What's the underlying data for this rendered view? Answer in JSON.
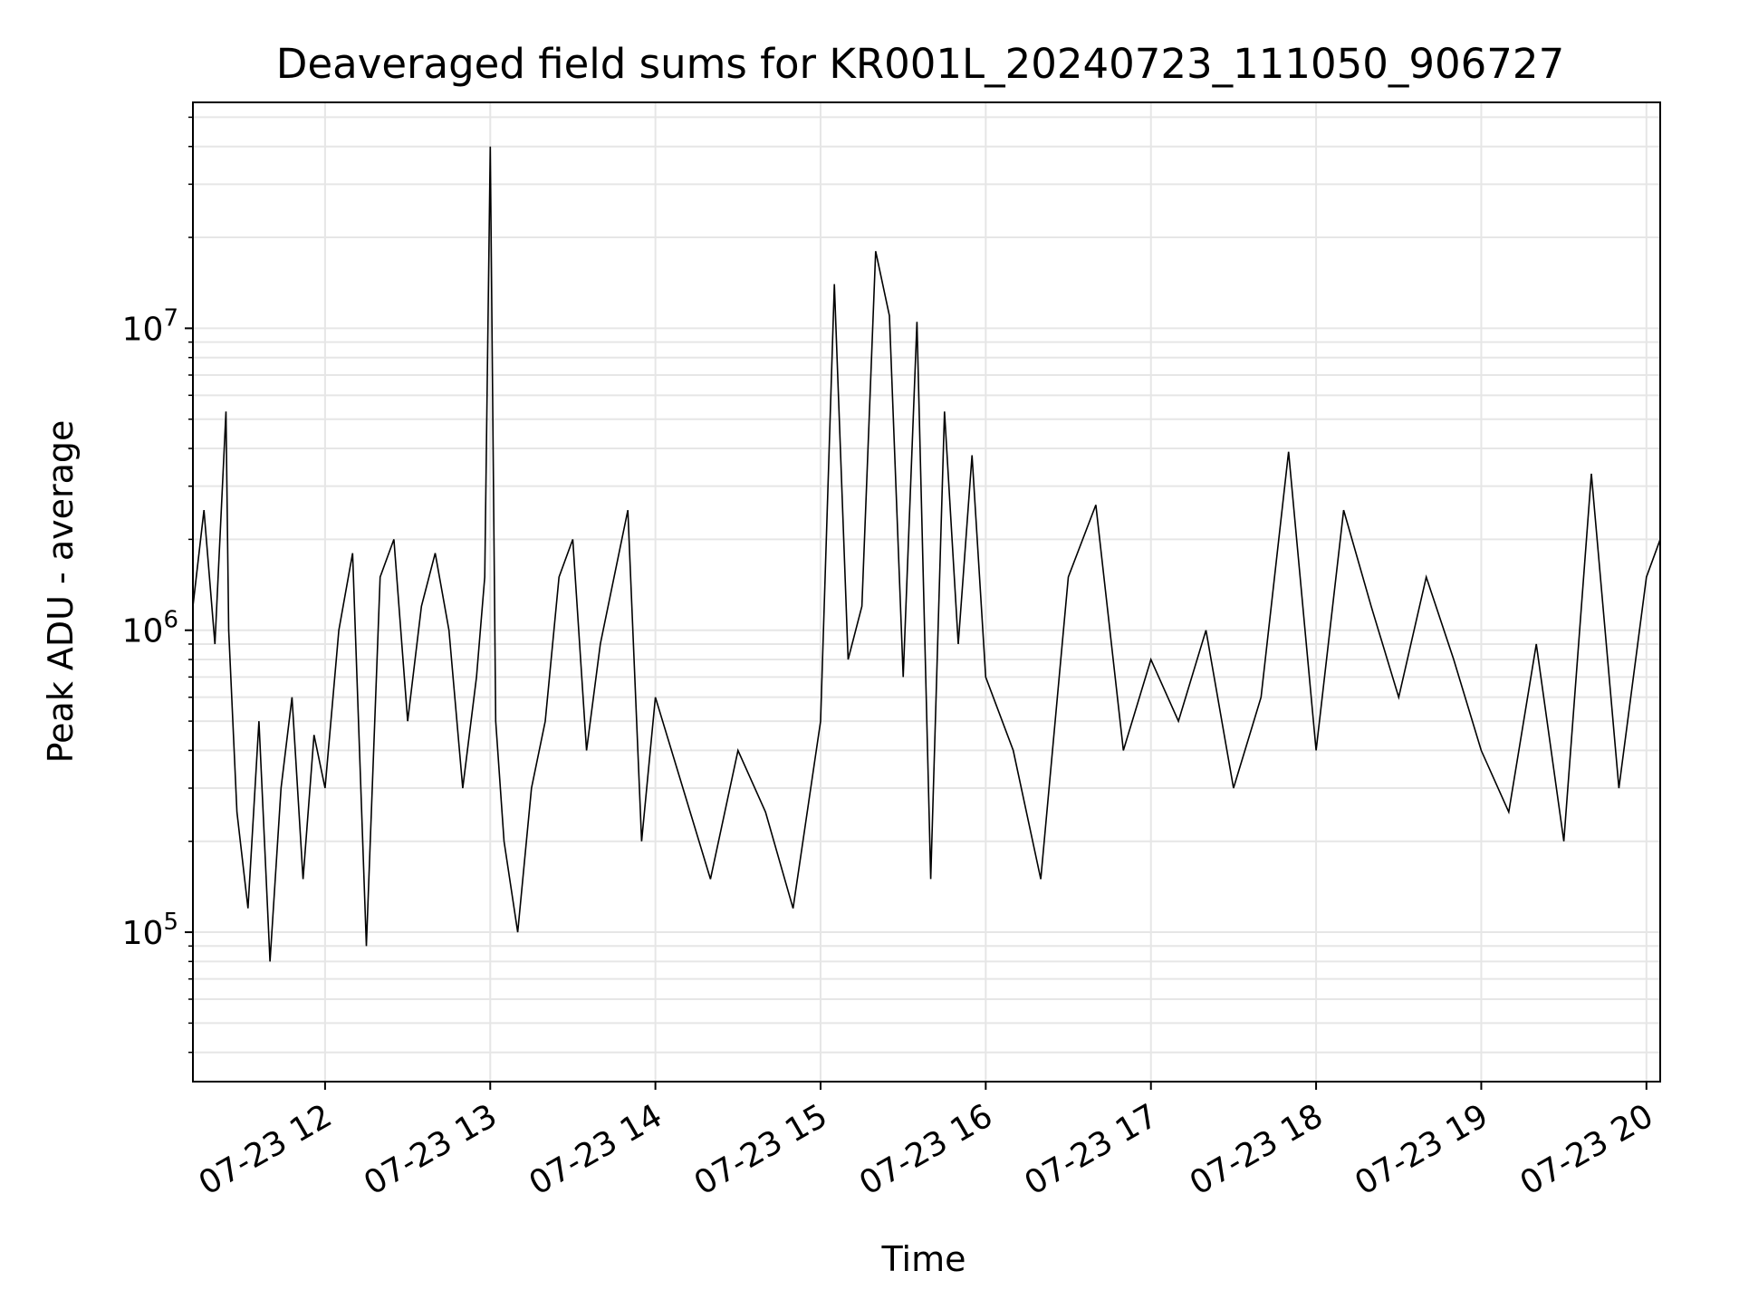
{
  "chart_data": {
    "type": "line",
    "title": "Deaveraged field sums for KR001L_20240723_111050_906727",
    "xlabel": "Time",
    "ylabel": "Peak ADU - average",
    "xlim": [
      "2024-07-23 11:12",
      "2024-07-23 20:05"
    ],
    "ylim": [
      32000,
      56000000
    ],
    "yscale": "log",
    "grid": true,
    "line_color": "#000000",
    "x_ticks": [
      {
        "value": "2024-07-23 12:00",
        "label": "07-23 12"
      },
      {
        "value": "2024-07-23 13:00",
        "label": "07-23 13"
      },
      {
        "value": "2024-07-23 14:00",
        "label": "07-23 14"
      },
      {
        "value": "2024-07-23 15:00",
        "label": "07-23 15"
      },
      {
        "value": "2024-07-23 16:00",
        "label": "07-23 16"
      },
      {
        "value": "2024-07-23 17:00",
        "label": "07-23 17"
      },
      {
        "value": "2024-07-23 18:00",
        "label": "07-23 18"
      },
      {
        "value": "2024-07-23 19:00",
        "label": "07-23 19"
      },
      {
        "value": "2024-07-23 20:00",
        "label": "07-23 20"
      }
    ],
    "y_ticks": [
      {
        "value": 100000,
        "base": "10",
        "exp": "5"
      },
      {
        "value": 1000000,
        "base": "10",
        "exp": "6"
      },
      {
        "value": 10000000,
        "base": "10",
        "exp": "7"
      }
    ],
    "series": [
      {
        "x": [
          "2024-07-23 11:12",
          "2024-07-23 11:16",
          "2024-07-23 11:20",
          "2024-07-23 11:24",
          "2024-07-23 11:25",
          "2024-07-23 11:28",
          "2024-07-23 11:32",
          "2024-07-23 11:36",
          "2024-07-23 11:40",
          "2024-07-23 11:44",
          "2024-07-23 11:48",
          "2024-07-23 11:52",
          "2024-07-23 11:56",
          "2024-07-23 12:00",
          "2024-07-23 12:05",
          "2024-07-23 12:10",
          "2024-07-23 12:15",
          "2024-07-23 12:20",
          "2024-07-23 12:25",
          "2024-07-23 12:30",
          "2024-07-23 12:35",
          "2024-07-23 12:40",
          "2024-07-23 12:45",
          "2024-07-23 12:50",
          "2024-07-23 12:55",
          "2024-07-23 12:58",
          "2024-07-23 13:00",
          "2024-07-23 13:02",
          "2024-07-23 13:05",
          "2024-07-23 13:10",
          "2024-07-23 13:15",
          "2024-07-23 13:20",
          "2024-07-23 13:25",
          "2024-07-23 13:30",
          "2024-07-23 13:35",
          "2024-07-23 13:40",
          "2024-07-23 13:45",
          "2024-07-23 13:50",
          "2024-07-23 13:55",
          "2024-07-23 14:00",
          "2024-07-23 14:10",
          "2024-07-23 14:20",
          "2024-07-23 14:30",
          "2024-07-23 14:40",
          "2024-07-23 14:50",
          "2024-07-23 15:00",
          "2024-07-23 15:05",
          "2024-07-23 15:10",
          "2024-07-23 15:15",
          "2024-07-23 15:20",
          "2024-07-23 15:25",
          "2024-07-23 15:30",
          "2024-07-23 15:35",
          "2024-07-23 15:40",
          "2024-07-23 15:45",
          "2024-07-23 15:50",
          "2024-07-23 15:55",
          "2024-07-23 16:00",
          "2024-07-23 16:10",
          "2024-07-23 16:20",
          "2024-07-23 16:30",
          "2024-07-23 16:40",
          "2024-07-23 16:50",
          "2024-07-23 17:00",
          "2024-07-23 17:10",
          "2024-07-23 17:20",
          "2024-07-23 17:30",
          "2024-07-23 17:40",
          "2024-07-23 17:50",
          "2024-07-23 18:00",
          "2024-07-23 18:10",
          "2024-07-23 18:20",
          "2024-07-23 18:30",
          "2024-07-23 18:40",
          "2024-07-23 18:50",
          "2024-07-23 19:00",
          "2024-07-23 19:10",
          "2024-07-23 19:20",
          "2024-07-23 19:30",
          "2024-07-23 19:40",
          "2024-07-23 19:50",
          "2024-07-23 20:00",
          "2024-07-23 20:05"
        ],
        "y": [
          1200000,
          2500000,
          900000,
          5300000,
          1000000,
          250000,
          120000,
          500000,
          80000,
          300000,
          600000,
          150000,
          450000,
          300000,
          1000000,
          1800000,
          90000,
          1500000,
          2000000,
          500000,
          1200000,
          1800000,
          1000000,
          300000,
          700000,
          1500000,
          40000000,
          500000,
          200000,
          100000,
          300000,
          500000,
          1500000,
          2000000,
          400000,
          900000,
          1500000,
          2500000,
          200000,
          600000,
          300000,
          150000,
          400000,
          250000,
          120000,
          500000,
          14000000,
          800000,
          1200000,
          18000000,
          11000000,
          700000,
          10500000,
          150000,
          5300000,
          900000,
          3800000,
          700000,
          400000,
          150000,
          1500000,
          2600000,
          400000,
          800000,
          500000,
          1000000,
          300000,
          600000,
          3900000,
          400000,
          2500000,
          1200000,
          600000,
          1500000,
          800000,
          400000,
          250000,
          900000,
          200000,
          3300000,
          300000,
          1500000,
          2000000
        ]
      }
    ]
  }
}
